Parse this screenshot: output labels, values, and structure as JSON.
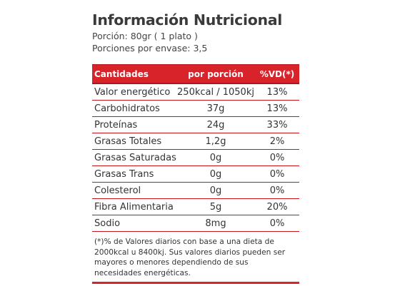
{
  "title": "Información Nutricional",
  "portion": "Porción: 80gr ( 1 plato )",
  "portions_per_pack": "Porciones por envase: 3,5",
  "table": {
    "headers": [
      "Cantidades",
      "por porción",
      "%VD(*)"
    ],
    "rows": [
      [
        "Valor energético",
        "250kcal / 1050kj",
        "13%"
      ],
      [
        "Carbohidratos",
        "37g",
        "13%"
      ],
      [
        "Proteínas",
        "24g",
        "33%"
      ],
      [
        "Grasas Totales",
        "1,2g",
        "2%"
      ],
      [
        "Grasas Saturadas",
        "0g",
        "0%"
      ],
      [
        "Grasas Trans",
        "0g",
        "0%"
      ],
      [
        "Colesterol",
        "0g",
        "0%"
      ],
      [
        "Fibra Alimentaria",
        "5g",
        "20%"
      ],
      [
        "Sodio",
        "8mg",
        "0%"
      ]
    ]
  },
  "footnote": "(*)% de Valores diarios con base a una dieta de 2000kcal u 8400kj.  Sus valores diarios pueden ser mayores o menores dependiendo de sus necesidades energéticas.",
  "colors": {
    "accent": "#d8232a"
  }
}
